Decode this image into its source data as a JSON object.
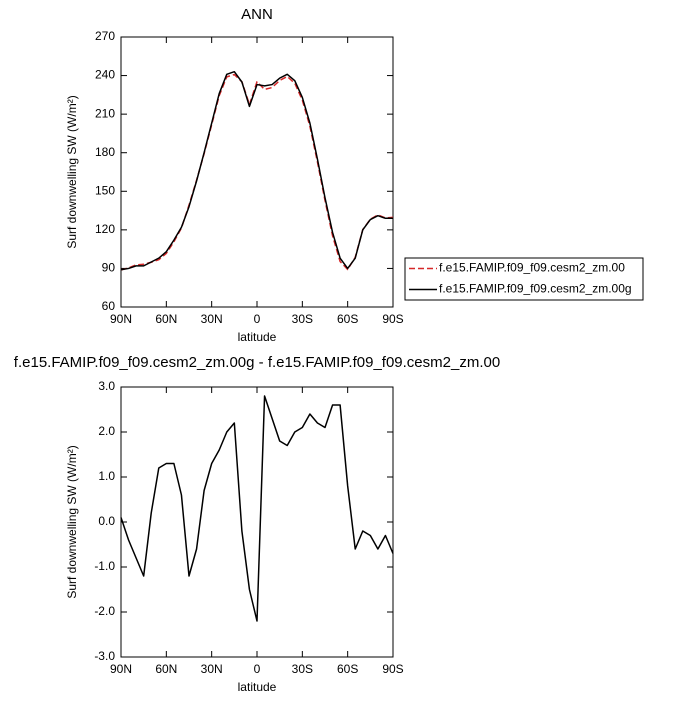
{
  "chart_data": [
    {
      "type": "line",
      "title": "ANN",
      "xlabel": "latitude",
      "ylabel": "Surf downwelling SW (W/m²)",
      "x": [
        90,
        85,
        80,
        75,
        70,
        65,
        60,
        55,
        50,
        45,
        40,
        35,
        30,
        25,
        20,
        15,
        10,
        5,
        0,
        -5,
        -10,
        -15,
        -20,
        -25,
        -30,
        -35,
        -40,
        -45,
        -50,
        -55,
        -60,
        -65,
        -70,
        -75,
        -80,
        -85,
        -90
      ],
      "xlim": [
        90,
        -90
      ],
      "xticks": [
        {
          "value": 90,
          "label": "90N"
        },
        {
          "value": 60,
          "label": "60N"
        },
        {
          "value": 30,
          "label": "30N"
        },
        0,
        {
          "value": -30,
          "label": "30S"
        },
        {
          "value": -60,
          "label": "60S"
        },
        {
          "value": -90,
          "label": "90S"
        }
      ],
      "ylim": [
        60,
        270
      ],
      "yticks": [
        60,
        90,
        120,
        150,
        180,
        210,
        240,
        270
      ],
      "legend": "right",
      "series": [
        {
          "name": "f.e15.FAMIP.f09_f09.cesm2_zm.00",
          "color": "#d62728",
          "line_style": "dashed",
          "values": [
            88.9,
            90.4,
            92.8,
            93.2,
            94.8,
            96.8,
            101.7,
            110.7,
            121.4,
            139.2,
            158.6,
            179.3,
            201.7,
            224.4,
            239,
            240.8,
            235.2,
            217.5,
            235.2,
            229.2,
            230.7,
            236.2,
            239.3,
            234,
            220.9,
            200.6,
            172.8,
            142.9,
            115.4,
            95.4,
            89.2,
            98.6,
            120.2,
            128.3,
            131.6,
            129.3,
            129.7
          ]
        },
        {
          "name": "f.e15.FAMIP.f09_f09.cesm2_zm.00g",
          "color": "#000000",
          "line_style": "solid",
          "values": [
            89,
            90,
            92,
            92,
            95,
            98,
            103,
            112,
            122,
            138,
            158,
            180,
            203,
            226,
            241,
            243,
            235,
            216,
            233,
            232,
            233,
            238,
            241,
            236,
            223,
            203,
            175,
            145,
            118,
            98,
            90,
            98,
            120,
            128,
            131,
            129,
            129
          ]
        }
      ]
    },
    {
      "type": "line",
      "title": "f.e15.FAMIP.f09_f09.cesm2_zm.00g - f.e15.FAMIP.f09_f09.cesm2_zm.00",
      "xlabel": "latitude",
      "ylabel": "Surf downwelling SW (W/m²)",
      "x": [
        90,
        85,
        80,
        75,
        70,
        65,
        60,
        55,
        50,
        45,
        40,
        35,
        30,
        25,
        20,
        15,
        10,
        5,
        0,
        -5,
        -10,
        -15,
        -20,
        -25,
        -30,
        -35,
        -40,
        -45,
        -50,
        -55,
        -60,
        -65,
        -70,
        -75,
        -80,
        -85,
        -90
      ],
      "xlim": [
        90,
        -90
      ],
      "xticks": [
        {
          "value": 90,
          "label": "90N"
        },
        {
          "value": 60,
          "label": "60N"
        },
        {
          "value": 30,
          "label": "30N"
        },
        0,
        {
          "value": -30,
          "label": "30S"
        },
        {
          "value": -60,
          "label": "60S"
        },
        {
          "value": -90,
          "label": "90S"
        }
      ],
      "ylim": [
        -3,
        3
      ],
      "yticks": [
        {
          "value": -3,
          "label": "-3.0"
        },
        {
          "value": -2,
          "label": "-2.0"
        },
        {
          "value": -1,
          "label": "-1.0"
        },
        {
          "value": 0,
          "label": "0.0"
        },
        {
          "value": 1,
          "label": "1.0"
        },
        {
          "value": 2,
          "label": "2.0"
        },
        {
          "value": 3,
          "label": "3.0"
        }
      ],
      "series": [
        {
          "color": "#000000",
          "line_style": "solid",
          "values": [
            0.1,
            -0.4,
            -0.8,
            -1.2,
            0.2,
            1.2,
            1.3,
            1.3,
            0.6,
            -1.2,
            -0.6,
            0.7,
            1.3,
            1.6,
            2.0,
            2.2,
            -0.2,
            -1.5,
            -2.2,
            2.8,
            2.3,
            1.8,
            1.7,
            2.0,
            2.1,
            2.4,
            2.2,
            2.1,
            2.6,
            2.6,
            0.8,
            -0.6,
            -0.2,
            -0.3,
            -0.6,
            -0.3,
            -0.7
          ]
        }
      ]
    }
  ]
}
